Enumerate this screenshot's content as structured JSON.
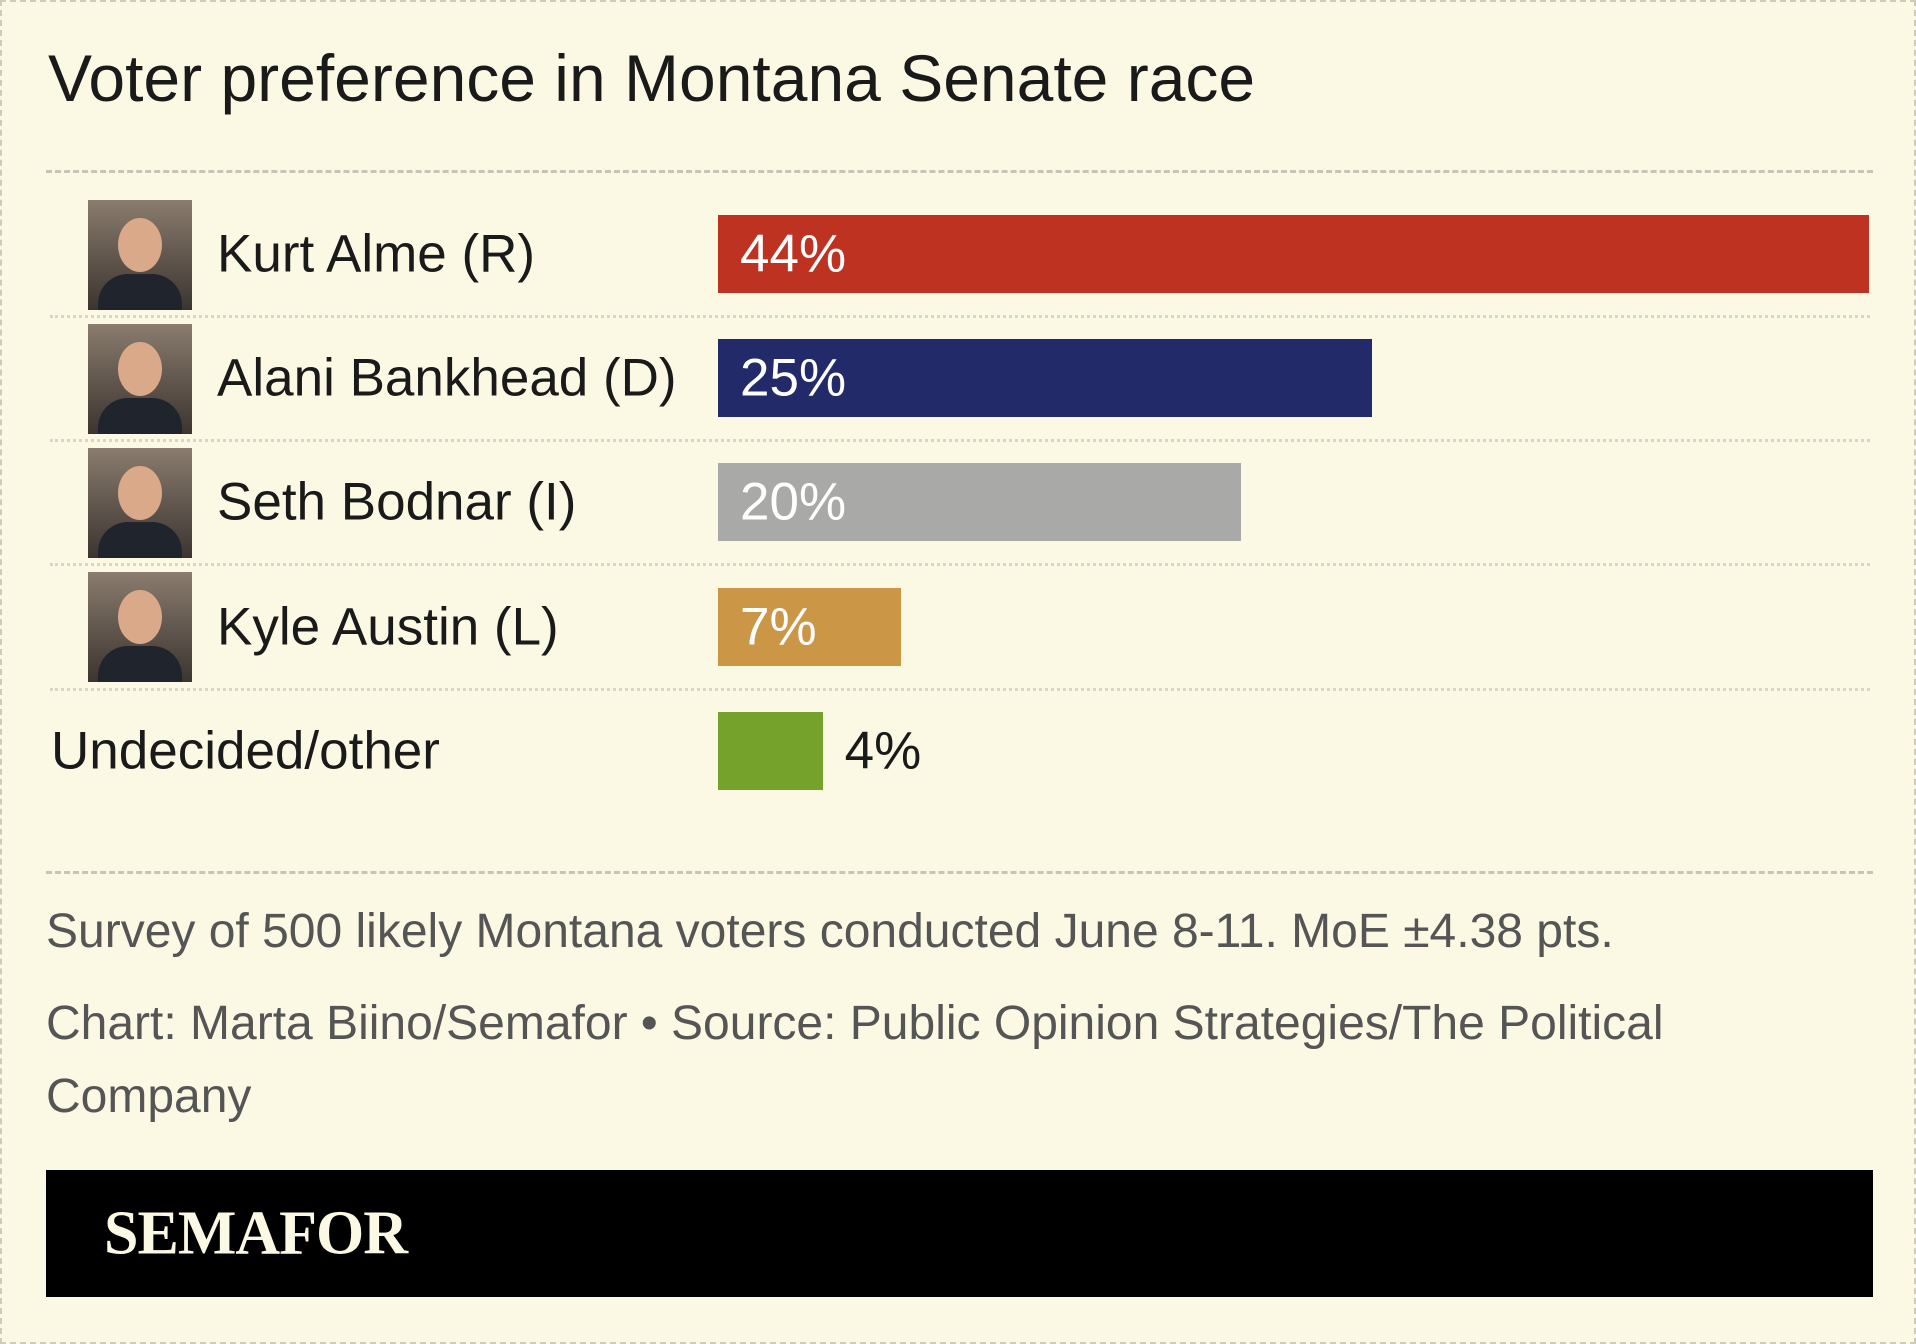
{
  "chart_data": {
    "type": "bar",
    "orientation": "horizontal",
    "title": "Voter preference in Montana Senate race",
    "categories": [
      "Kurt Alme (R)",
      "Alani Bankhead (D)",
      "Seth Bodnar (I)",
      "Kyle Austin (L)",
      "Undecided/other"
    ],
    "values": [
      44,
      25,
      20,
      7,
      4
    ],
    "value_labels": [
      "44%",
      "25%",
      "20%",
      "7%",
      "4%"
    ],
    "colors": [
      "#bd3221",
      "#232a6a",
      "#a9a9a8",
      "#cb9646",
      "#74a22a"
    ],
    "note": "Survey of 500 likely Montana voters conducted June 8-11. MoE ±4.38 pts.",
    "source": "Chart: Marta Biino/Semafor • Source: Public Opinion Strategies/The Political Company",
    "brand": "SEMAFOR"
  }
}
